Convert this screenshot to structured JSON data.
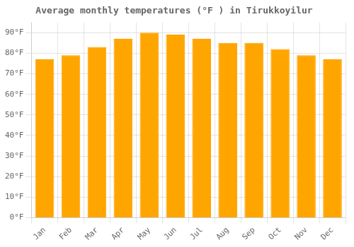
{
  "chart_data": {
    "type": "bar",
    "title": "Average monthly temperatures (°F ) in Tirukkoyilur",
    "categories": [
      "Jan",
      "Feb",
      "Mar",
      "Apr",
      "May",
      "Jun",
      "Jul",
      "Aug",
      "Sep",
      "Oct",
      "Nov",
      "Dec"
    ],
    "values": [
      77,
      79,
      83,
      87,
      90,
      89,
      87,
      85,
      85,
      82,
      79,
      77
    ],
    "color": "#FFA500",
    "ylim": [
      0,
      95
    ],
    "yticks": [
      {
        "value": 0,
        "label": "0°F"
      },
      {
        "value": 10,
        "label": "10°F"
      },
      {
        "value": 20,
        "label": "20°F"
      },
      {
        "value": 30,
        "label": "30°F"
      },
      {
        "value": 40,
        "label": "40°F"
      },
      {
        "value": 50,
        "label": "50°F"
      },
      {
        "value": 60,
        "label": "60°F"
      },
      {
        "value": 70,
        "label": "70°F"
      },
      {
        "value": 80,
        "label": "80°F"
      },
      {
        "value": 90,
        "label": "90°F"
      }
    ],
    "grid": true
  }
}
